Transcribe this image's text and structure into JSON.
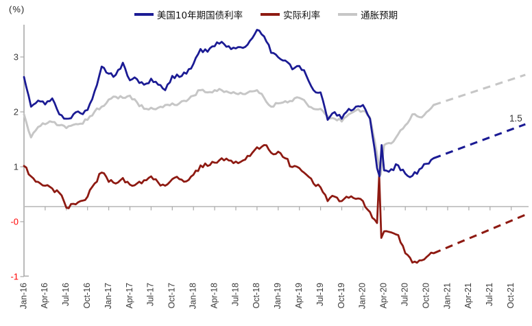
{
  "unit_label": "(%)",
  "annotation": {
    "label": "1.5"
  },
  "legend": [
    {
      "key": "nominal",
      "label": "美国10年期国债利率",
      "color": "#1B1B94"
    },
    {
      "key": "real",
      "label": "实际利率",
      "color": "#8E1A12"
    },
    {
      "key": "breakeven",
      "label": "通胀预期",
      "color": "#C6C6C6"
    }
  ],
  "y_axis": {
    "tick_labels": [
      "3",
      "2",
      "1",
      "-0",
      "-1"
    ],
    "positive_color": "#3A3A3A",
    "negative_color": "#FF0000"
  },
  "x_axis": {
    "labels": [
      "Jan-16",
      "Apr-16",
      "Jul-16",
      "Oct-16",
      "Jan-17",
      "Apr-17",
      "Jul-17",
      "Oct-17",
      "Jan-18",
      "Apr-18",
      "Jul-18",
      "Oct-18",
      "Jan-19",
      "Apr-19",
      "Jul-19",
      "Oct-19",
      "Jan-20",
      "Apr-20",
      "Jul-20",
      "Oct-20",
      "Jan-21",
      "Apr-21",
      "Jul-21",
      "Oct-21"
    ]
  },
  "chart_data": {
    "type": "line",
    "x_unit": "month",
    "x_start": "Jan-16",
    "solid_end": "Nov-20",
    "forecast_end": "Dec-21",
    "ylim": [
      -1,
      3.5
    ],
    "grid": false,
    "legend_position": "top-center",
    "zero_line": true,
    "series": [
      {
        "key": "nominal",
        "name": "美国10年期国债利率",
        "color": "#1B1B94",
        "style": "solid-then-dashed-forecast",
        "values": [
          2.36,
          1.82,
          1.93,
          1.86,
          1.97,
          1.68,
          1.6,
          1.68,
          1.7,
          1.76,
          2.1,
          2.55,
          2.42,
          2.4,
          2.62,
          2.3,
          2.32,
          2.22,
          2.33,
          2.22,
          2.12,
          2.38,
          2.36,
          2.42,
          2.6,
          2.87,
          2.82,
          2.92,
          3.0,
          2.92,
          2.88,
          2.89,
          3.02,
          3.22,
          3.1,
          2.8,
          2.72,
          2.66,
          2.5,
          2.56,
          2.38,
          2.12,
          2.08,
          1.58,
          1.72,
          1.6,
          1.78,
          1.82,
          1.85,
          1.6,
          0.7,
          0.66,
          0.68,
          0.75,
          0.6,
          0.56,
          0.68,
          0.78,
          0.88
        ],
        "extremes": [
          {
            "i": 50.35,
            "v": 0.55
          },
          {
            "i": 50.65,
            "v": 1.12
          }
        ],
        "forecast": {
          "from_month": 58,
          "to_month": 71,
          "from_value": 0.88,
          "to_value": 1.5
        }
      },
      {
        "key": "real",
        "name": "实际利率",
        "color": "#8E1A12",
        "style": "solid-then-dashed-forecast",
        "values": [
          0.74,
          0.55,
          0.45,
          0.38,
          0.33,
          0.25,
          -0.02,
          0.05,
          0.1,
          0.18,
          0.42,
          0.62,
          0.45,
          0.42,
          0.52,
          0.4,
          0.42,
          0.48,
          0.55,
          0.44,
          0.38,
          0.5,
          0.5,
          0.46,
          0.58,
          0.75,
          0.74,
          0.8,
          0.88,
          0.84,
          0.82,
          0.84,
          0.92,
          1.08,
          1.12,
          0.98,
          1.0,
          0.88,
          0.72,
          0.7,
          0.58,
          0.42,
          0.35,
          0.1,
          0.18,
          0.1,
          0.16,
          0.14,
          0.1,
          -0.1,
          -0.3,
          -0.45,
          -0.47,
          -0.52,
          -0.85,
          -1.02,
          -0.98,
          -0.92,
          -0.85
        ],
        "extremes": [
          {
            "i": 50.3,
            "v": 0.57
          },
          {
            "i": 50.6,
            "v": -0.57
          }
        ],
        "forecast": {
          "from_month": 58,
          "to_month": 71,
          "from_value": -0.85,
          "to_value": -0.15
        }
      },
      {
        "key": "breakeven",
        "name": "通胀预期",
        "color": "#C6C6C6",
        "style": "solid-then-dashed-forecast",
        "values": [
          1.68,
          1.26,
          1.45,
          1.5,
          1.54,
          1.48,
          1.43,
          1.49,
          1.51,
          1.58,
          1.73,
          1.82,
          1.95,
          2.0,
          1.98,
          2.02,
          1.9,
          1.78,
          1.8,
          1.8,
          1.85,
          1.88,
          1.88,
          1.92,
          2.02,
          2.12,
          2.08,
          2.12,
          2.12,
          2.08,
          2.06,
          2.05,
          2.1,
          2.12,
          1.98,
          1.82,
          1.88,
          1.92,
          1.92,
          1.98,
          1.88,
          1.78,
          1.78,
          1.65,
          1.6,
          1.55,
          1.68,
          1.75,
          1.74,
          1.62,
          0.95,
          1.12,
          1.15,
          1.32,
          1.48,
          1.68,
          1.63,
          1.72,
          1.85
        ],
        "extremes": [
          {
            "i": 50.5,
            "v": 0.58
          }
        ],
        "forecast": {
          "from_month": 58,
          "to_month": 71,
          "from_value": 1.85,
          "to_value": 2.4
        }
      }
    ]
  }
}
